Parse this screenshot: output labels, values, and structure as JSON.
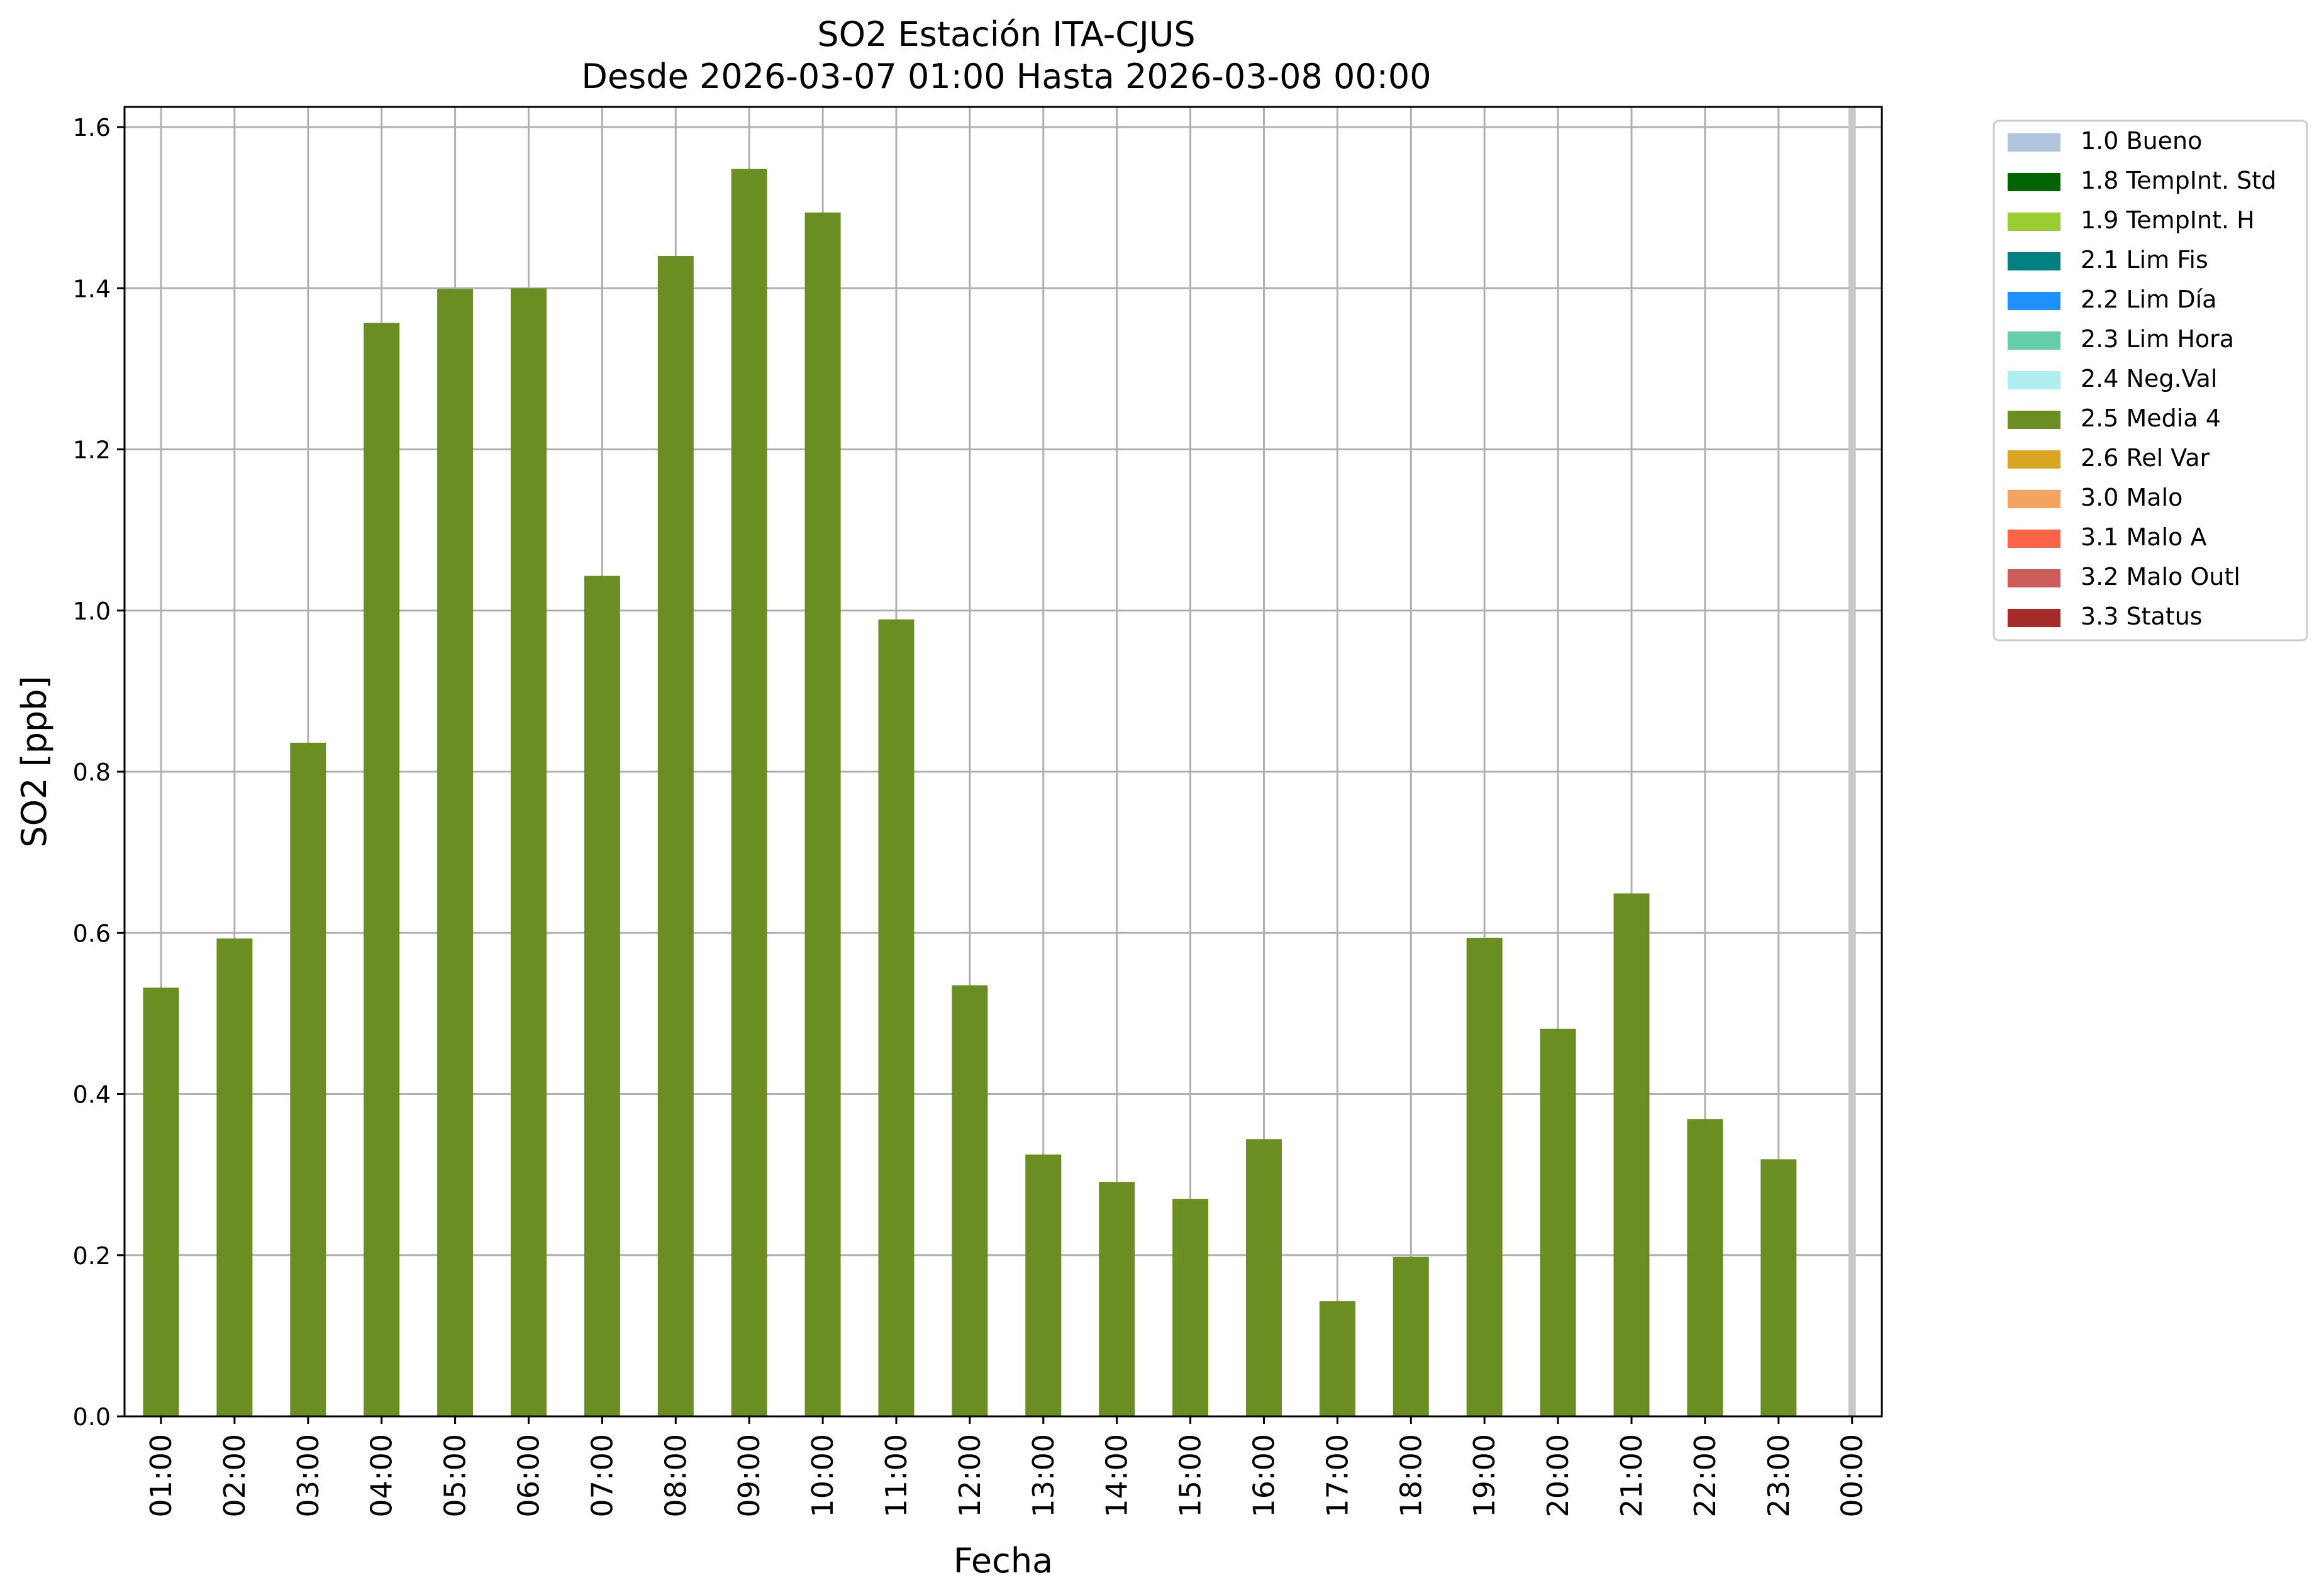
{
  "chart_data": {
    "type": "bar",
    "title": "SO2 Estación ITA-CJUS",
    "subtitle": "Desde 2026-03-07 01:00 Hasta 2026-03-08 00:00",
    "xlabel": "Fecha",
    "ylabel": "SO2 [ppb]",
    "ylim": [
      0,
      1.625
    ],
    "yticks": [
      "0.0",
      "0.2",
      "0.4",
      "0.6",
      "0.8",
      "1.0",
      "1.2",
      "1.4",
      "1.6"
    ],
    "grid": true,
    "legend_position": "outside-top-right",
    "categories": [
      "01:00",
      "02:00",
      "03:00",
      "04:00",
      "05:00",
      "06:00",
      "07:00",
      "08:00",
      "09:00",
      "10:00",
      "11:00",
      "12:00",
      "13:00",
      "14:00",
      "15:00",
      "16:00",
      "17:00",
      "18:00",
      "19:00",
      "20:00",
      "21:00",
      "22:00",
      "23:00",
      "00:00"
    ],
    "series": [
      {
        "name": "2.5 Media 4",
        "color": "#6b8e23",
        "values": [
          0.532,
          0.593,
          0.836,
          1.357,
          1.399,
          1.4,
          1.043,
          1.44,
          1.548,
          1.494,
          0.989,
          0.535,
          0.325,
          0.291,
          0.27,
          0.344,
          0.143,
          0.198,
          0.594,
          0.481,
          0.649,
          0.369,
          0.319,
          null
        ]
      }
    ],
    "legend": [
      {
        "label": "1.0 Bueno",
        "color": "#b0c4de"
      },
      {
        "label": "1.8 TempInt. Std",
        "color": "#006400"
      },
      {
        "label": "1.9 TempInt. H",
        "color": "#9acd32"
      },
      {
        "label": "2.1 Lim Fis",
        "color": "#008080"
      },
      {
        "label": "2.2 Lim Día",
        "color": "#1e90ff"
      },
      {
        "label": "2.3 Lim Hora",
        "color": "#66cdaa"
      },
      {
        "label": "2.4 Neg.Val",
        "color": "#afeeee"
      },
      {
        "label": "2.5 Media 4",
        "color": "#6b8e23"
      },
      {
        "label": "2.6 Rel Var",
        "color": "#daa520"
      },
      {
        "label": "3.0 Malo",
        "color": "#f4a460"
      },
      {
        "label": "3.1 Malo A",
        "color": "#ff6347"
      },
      {
        "label": "3.2 Malo Outl",
        "color": "#cd5c5c"
      },
      {
        "label": "3.3 Status",
        "color": "#a52a2a"
      }
    ]
  }
}
